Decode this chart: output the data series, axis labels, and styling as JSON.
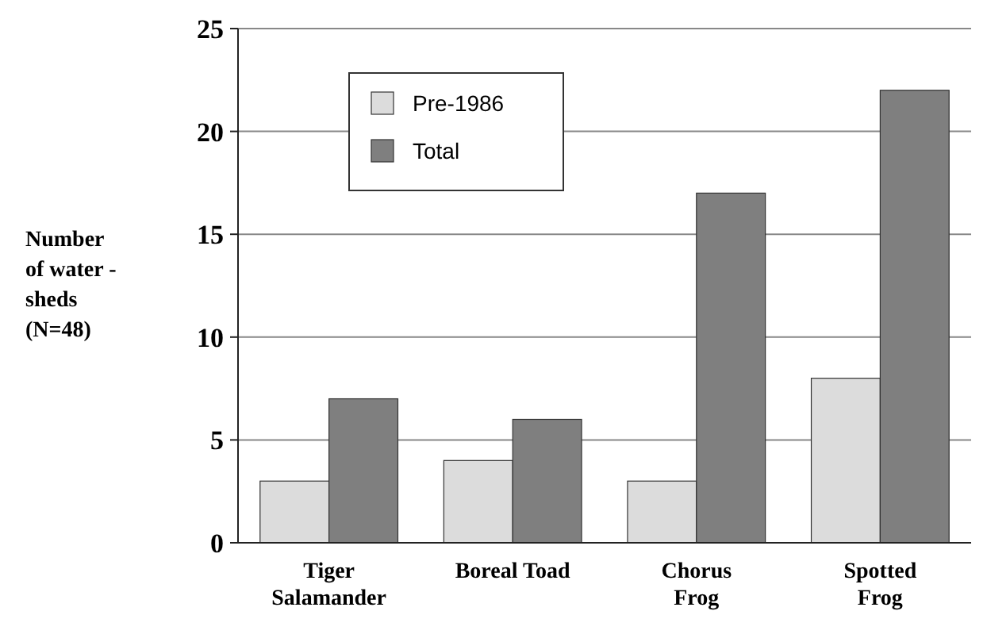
{
  "chart_data": {
    "type": "bar",
    "ylabel": "Number\nof water -\nsheds\n(N=48)",
    "categories": [
      "Tiger\nSalamander",
      "Boreal Toad",
      "Chorus\nFrog",
      "Spotted\nFrog"
    ],
    "series": [
      {
        "name": "Pre-1986",
        "color": "#dcdcdc",
        "values": [
          3,
          4,
          3,
          8
        ]
      },
      {
        "name": "Total",
        "color": "#7f7f7f",
        "values": [
          7,
          6,
          17,
          22
        ]
      }
    ],
    "ylim": [
      0,
      25
    ],
    "yticks": [
      0,
      5,
      10,
      15,
      20,
      25
    ],
    "grid": "y",
    "legend": "top left"
  }
}
